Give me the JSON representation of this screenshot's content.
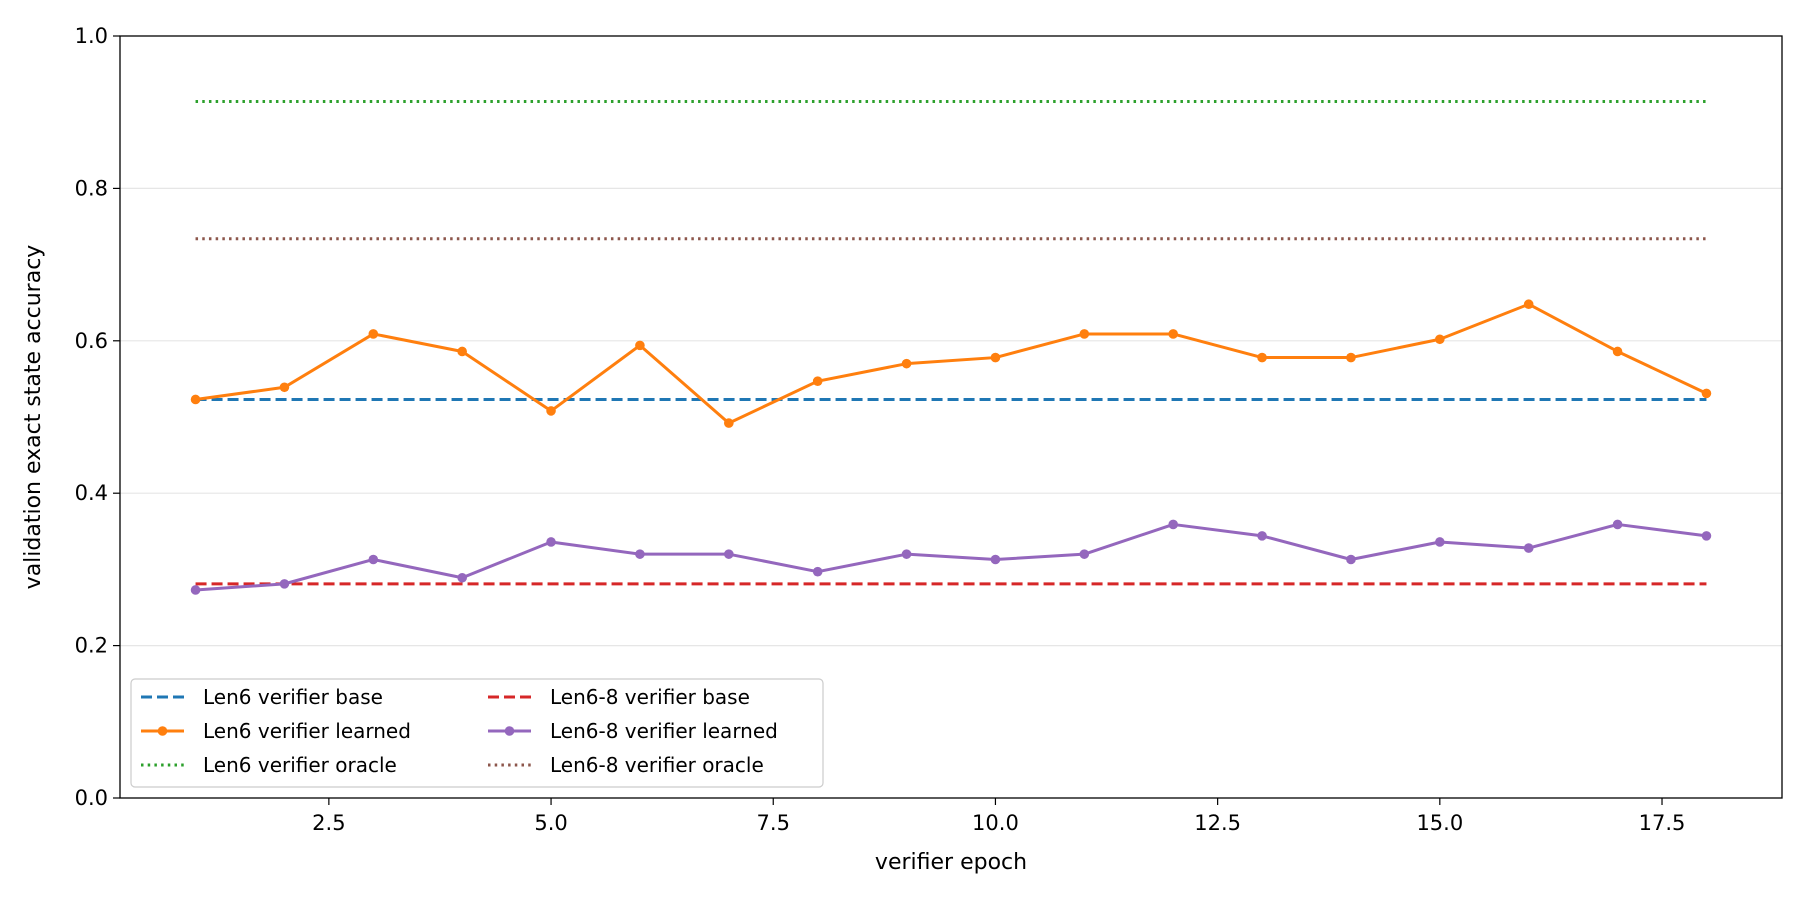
{
  "chart_data": {
    "type": "line",
    "title": "",
    "xlabel": "verifier epoch",
    "ylabel": "validation exact state accuracy",
    "xlim": [
      0.15,
      18.85
    ],
    "ylim": [
      0.0,
      1.0
    ],
    "xticks": [
      2.5,
      5.0,
      7.5,
      10.0,
      12.5,
      15.0,
      17.5
    ],
    "xtick_labels": [
      "2.5",
      "5.0",
      "7.5",
      "10.0",
      "12.5",
      "15.0",
      "17.5"
    ],
    "yticks": [
      0.0,
      0.2,
      0.4,
      0.6,
      0.8,
      1.0
    ],
    "ytick_labels": [
      "0.0",
      "0.2",
      "0.4",
      "0.6",
      "0.8",
      "1.0"
    ],
    "grid": "horizontal",
    "legend_position": "lower-left",
    "series": [
      {
        "name": "Len6 verifier base",
        "color": "#1f77b4",
        "style": "dashed",
        "marker": false,
        "x": [
          1,
          18
        ],
        "values": [
          0.523,
          0.523
        ]
      },
      {
        "name": "Len6 verifier learned",
        "color": "#ff7f0e",
        "style": "solid",
        "marker": true,
        "x": [
          1,
          2,
          3,
          4,
          5,
          6,
          7,
          8,
          9,
          10,
          11,
          12,
          13,
          14,
          15,
          16,
          17,
          18
        ],
        "values": [
          0.523,
          0.539,
          0.609,
          0.586,
          0.508,
          0.594,
          0.492,
          0.547,
          0.57,
          0.578,
          0.609,
          0.609,
          0.578,
          0.578,
          0.602,
          0.648,
          0.586,
          0.531
        ]
      },
      {
        "name": "Len6 verifier oracle",
        "color": "#2ca02c",
        "style": "dotted",
        "marker": false,
        "x": [
          1,
          18
        ],
        "values": [
          0.914,
          0.914
        ]
      },
      {
        "name": "Len6-8 verifier base",
        "color": "#d62728",
        "style": "dashed",
        "marker": false,
        "x": [
          1,
          18
        ],
        "values": [
          0.281,
          0.281
        ]
      },
      {
        "name": "Len6-8 verifier learned",
        "color": "#9467bd",
        "style": "solid",
        "marker": true,
        "x": [
          1,
          2,
          3,
          4,
          5,
          6,
          7,
          8,
          9,
          10,
          11,
          12,
          13,
          14,
          15,
          16,
          17,
          18
        ],
        "values": [
          0.273,
          0.281,
          0.313,
          0.289,
          0.336,
          0.32,
          0.32,
          0.297,
          0.32,
          0.313,
          0.32,
          0.359,
          0.344,
          0.313,
          0.336,
          0.328,
          0.359,
          0.344
        ]
      },
      {
        "name": "Len6-8 verifier oracle",
        "color": "#8c564b",
        "style": "dotted",
        "marker": false,
        "x": [
          1,
          18
        ],
        "values": [
          0.734,
          0.734
        ]
      }
    ]
  }
}
